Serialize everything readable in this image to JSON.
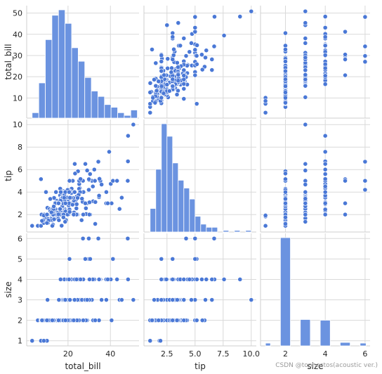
{
  "chart_data": {
    "type": "scatter",
    "layout": "pairplot",
    "variables": [
      "total_bill",
      "tip",
      "size"
    ],
    "axis_labels": {
      "total_bill": "total_bill",
      "tip": "tip",
      "size": "size"
    },
    "ranges": {
      "total_bill": [
        0.5,
        53.5
      ],
      "tip": [
        0.45,
        10.45
      ],
      "size": [
        0.75,
        6.25
      ]
    },
    "ticks": {
      "x": {
        "total_bill": [
          20,
          40
        ],
        "tip": [
          2.5,
          5.0,
          7.5,
          10.0
        ],
        "size": [
          2,
          4,
          6
        ]
      },
      "y": {
        "total_bill": [
          10,
          20,
          30,
          40,
          50
        ],
        "tip": [
          2,
          4,
          6,
          8,
          10
        ],
        "size": [
          1,
          2,
          3,
          4,
          5,
          6
        ]
      }
    },
    "grid": true,
    "colors": {
      "marker": "#4a78d6",
      "marker_edge": "#ffffff",
      "hist": "#6b93e0",
      "grid": "#d9d9d9",
      "spine": "#cfcfcf"
    },
    "histograms": {
      "total_bill": {
        "edges": [
          3.07,
          6.2,
          9.3,
          12.4,
          15.5,
          18.6,
          21.7,
          24.8,
          27.9,
          31.0,
          34.1,
          37.2,
          40.3,
          43.4,
          46.5,
          49.6,
          52.7
        ],
        "counts": [
          2,
          13,
          29,
          38,
          40,
          35,
          26,
          21,
          15,
          10,
          8,
          5,
          4,
          2,
          1,
          3
        ]
      },
      "tip": {
        "edges": [
          1.0,
          1.5,
          2.0,
          2.5,
          3.0,
          3.5,
          4.0,
          4.5,
          5.0,
          5.5,
          6.0,
          6.5,
          7.0,
          7.5,
          8.0,
          8.5,
          9.0,
          9.5,
          10.0
        ],
        "counts": [
          15,
          40,
          69,
          61,
          44,
          33,
          28,
          21,
          10,
          5,
          3,
          3,
          0,
          1,
          0,
          1,
          0,
          1
        ]
      },
      "size": {
        "edges": [
          1.0,
          1.25,
          1.75,
          2.25,
          2.75,
          3.25,
          3.75,
          4.25,
          4.75,
          5.25,
          5.75,
          6.05
        ],
        "counts": [
          4,
          0,
          156,
          0,
          38,
          0,
          37,
          0,
          5,
          0,
          4
        ]
      }
    },
    "points": [
      [
        16.99,
        1.01,
        2
      ],
      [
        10.34,
        1.66,
        3
      ],
      [
        21.01,
        3.5,
        3
      ],
      [
        23.68,
        3.31,
        2
      ],
      [
        24.59,
        3.61,
        4
      ],
      [
        25.29,
        4.71,
        4
      ],
      [
        8.77,
        2.0,
        2
      ],
      [
        26.88,
        3.12,
        4
      ],
      [
        15.04,
        1.96,
        2
      ],
      [
        14.78,
        3.23,
        2
      ],
      [
        10.27,
        1.71,
        2
      ],
      [
        35.26,
        5.0,
        4
      ],
      [
        15.42,
        1.57,
        2
      ],
      [
        18.43,
        3.0,
        4
      ],
      [
        14.83,
        3.02,
        2
      ],
      [
        21.58,
        3.92,
        2
      ],
      [
        10.33,
        1.67,
        3
      ],
      [
        16.29,
        3.71,
        3
      ],
      [
        16.97,
        3.5,
        3
      ],
      [
        20.65,
        3.35,
        3
      ],
      [
        17.92,
        4.08,
        2
      ],
      [
        20.29,
        2.75,
        2
      ],
      [
        15.77,
        2.23,
        2
      ],
      [
        39.42,
        7.58,
        4
      ],
      [
        19.82,
        3.18,
        2
      ],
      [
        17.81,
        2.34,
        4
      ],
      [
        13.37,
        2.0,
        2
      ],
      [
        12.69,
        2.0,
        2
      ],
      [
        21.7,
        4.3,
        2
      ],
      [
        19.65,
        3.0,
        2
      ],
      [
        9.55,
        1.45,
        2
      ],
      [
        18.35,
        2.5,
        4
      ],
      [
        15.06,
        3.0,
        2
      ],
      [
        20.69,
        2.45,
        4
      ],
      [
        17.78,
        3.27,
        2
      ],
      [
        24.06,
        3.6,
        3
      ],
      [
        16.31,
        2.0,
        3
      ],
      [
        16.93,
        3.07,
        3
      ],
      [
        18.69,
        2.31,
        3
      ],
      [
        31.27,
        5.0,
        3
      ],
      [
        16.04,
        2.24,
        3
      ],
      [
        17.46,
        2.54,
        2
      ],
      [
        13.94,
        3.06,
        2
      ],
      [
        9.68,
        1.32,
        2
      ],
      [
        30.4,
        5.6,
        4
      ],
      [
        18.29,
        3.0,
        2
      ],
      [
        22.23,
        5.0,
        2
      ],
      [
        32.4,
        6.0,
        4
      ],
      [
        28.55,
        2.05,
        3
      ],
      [
        18.04,
        3.0,
        2
      ],
      [
        12.54,
        2.5,
        2
      ],
      [
        10.29,
        2.6,
        2
      ],
      [
        34.81,
        5.2,
        4
      ],
      [
        9.94,
        1.56,
        2
      ],
      [
        25.56,
        4.34,
        4
      ],
      [
        19.49,
        3.51,
        2
      ],
      [
        38.01,
        3.0,
        4
      ],
      [
        26.41,
        1.5,
        2
      ],
      [
        11.24,
        1.76,
        2
      ],
      [
        48.27,
        6.73,
        4
      ],
      [
        20.29,
        3.21,
        2
      ],
      [
        13.81,
        2.0,
        2
      ],
      [
        11.02,
        1.98,
        2
      ],
      [
        18.29,
        3.76,
        4
      ],
      [
        17.59,
        2.64,
        3
      ],
      [
        20.08,
        3.15,
        3
      ],
      [
        16.45,
        2.47,
        2
      ],
      [
        3.07,
        1.0,
        1
      ],
      [
        20.23,
        2.01,
        2
      ],
      [
        15.01,
        2.09,
        2
      ],
      [
        12.02,
        1.97,
        2
      ],
      [
        17.07,
        3.0,
        3
      ],
      [
        26.86,
        3.14,
        2
      ],
      [
        25.28,
        5.0,
        2
      ],
      [
        14.73,
        2.2,
        2
      ],
      [
        10.51,
        1.25,
        2
      ],
      [
        17.92,
        3.08,
        2
      ],
      [
        27.2,
        4.0,
        4
      ],
      [
        22.76,
        3.0,
        2
      ],
      [
        17.29,
        2.71,
        2
      ],
      [
        19.44,
        3.0,
        2
      ],
      [
        16.66,
        3.4,
        2
      ],
      [
        10.07,
        1.83,
        1
      ],
      [
        32.68,
        5.0,
        2
      ],
      [
        15.98,
        2.03,
        2
      ],
      [
        34.83,
        5.17,
        4
      ],
      [
        13.03,
        2.0,
        2
      ],
      [
        18.28,
        4.0,
        2
      ],
      [
        24.71,
        5.85,
        2
      ],
      [
        21.16,
        3.0,
        2
      ],
      [
        28.97,
        3.0,
        2
      ],
      [
        22.49,
        3.5,
        2
      ],
      [
        5.75,
        1.0,
        2
      ],
      [
        16.32,
        4.3,
        2
      ],
      [
        22.75,
        3.25,
        2
      ],
      [
        40.17,
        4.73,
        4
      ],
      [
        27.28,
        4.0,
        2
      ],
      [
        12.03,
        1.5,
        2
      ],
      [
        21.01,
        3.0,
        2
      ],
      [
        12.46,
        1.5,
        2
      ],
      [
        11.35,
        2.5,
        2
      ],
      [
        15.38,
        3.0,
        2
      ],
      [
        44.3,
        2.5,
        3
      ],
      [
        22.42,
        3.48,
        2
      ],
      [
        20.92,
        4.08,
        2
      ],
      [
        15.36,
        1.64,
        2
      ],
      [
        20.49,
        4.06,
        2
      ],
      [
        25.21,
        4.29,
        2
      ],
      [
        18.24,
        3.76,
        2
      ],
      [
        14.31,
        4.0,
        2
      ],
      [
        14.0,
        3.0,
        2
      ],
      [
        7.25,
        1.0,
        1
      ],
      [
        38.07,
        4.0,
        3
      ],
      [
        23.95,
        2.55,
        2
      ],
      [
        25.71,
        4.0,
        3
      ],
      [
        17.31,
        3.5,
        2
      ],
      [
        29.93,
        5.07,
        4
      ],
      [
        10.65,
        1.5,
        2
      ],
      [
        12.43,
        1.8,
        2
      ],
      [
        24.08,
        2.92,
        4
      ],
      [
        11.69,
        2.31,
        2
      ],
      [
        13.42,
        1.68,
        2
      ],
      [
        14.26,
        2.5,
        2
      ],
      [
        15.95,
        2.0,
        2
      ],
      [
        12.48,
        2.52,
        2
      ],
      [
        29.8,
        4.2,
        6
      ],
      [
        8.52,
        1.48,
        2
      ],
      [
        14.52,
        2.0,
        2
      ],
      [
        11.38,
        2.0,
        2
      ],
      [
        22.82,
        2.18,
        3
      ],
      [
        19.08,
        1.5,
        2
      ],
      [
        20.27,
        2.83,
        2
      ],
      [
        11.17,
        1.5,
        2
      ],
      [
        12.26,
        2.0,
        2
      ],
      [
        18.26,
        3.25,
        2
      ],
      [
        8.51,
        1.25,
        2
      ],
      [
        10.33,
        2.0,
        2
      ],
      [
        14.15,
        2.0,
        2
      ],
      [
        16.0,
        2.0,
        2
      ],
      [
        13.16,
        2.75,
        2
      ],
      [
        17.47,
        3.5,
        2
      ],
      [
        34.3,
        6.7,
        6
      ],
      [
        41.19,
        5.0,
        5
      ],
      [
        27.05,
        5.0,
        6
      ],
      [
        16.43,
        2.3,
        2
      ],
      [
        8.35,
        1.5,
        2
      ],
      [
        18.64,
        1.36,
        3
      ],
      [
        11.87,
        1.63,
        2
      ],
      [
        9.78,
        1.73,
        2
      ],
      [
        7.51,
        2.0,
        2
      ],
      [
        14.07,
        2.5,
        2
      ],
      [
        13.13,
        2.0,
        2
      ],
      [
        17.26,
        2.74,
        3
      ],
      [
        24.55,
        2.0,
        4
      ],
      [
        19.77,
        2.0,
        4
      ],
      [
        29.85,
        5.14,
        5
      ],
      [
        48.17,
        5.0,
        6
      ],
      [
        25.0,
        3.75,
        4
      ],
      [
        13.39,
        2.61,
        2
      ],
      [
        16.49,
        2.0,
        4
      ],
      [
        21.5,
        3.5,
        4
      ],
      [
        12.66,
        2.5,
        2
      ],
      [
        16.21,
        2.0,
        3
      ],
      [
        13.81,
        2.0,
        2
      ],
      [
        17.51,
        3.0,
        2
      ],
      [
        24.52,
        3.48,
        3
      ],
      [
        20.76,
        2.24,
        2
      ],
      [
        31.71,
        4.5,
        4
      ],
      [
        10.59,
        1.61,
        2
      ],
      [
        10.63,
        2.0,
        2
      ],
      [
        50.81,
        10.0,
        3
      ],
      [
        15.81,
        3.16,
        2
      ],
      [
        7.25,
        5.15,
        2
      ],
      [
        31.85,
        3.18,
        2
      ],
      [
        16.82,
        4.0,
        2
      ],
      [
        32.9,
        3.11,
        2
      ],
      [
        17.89,
        2.0,
        2
      ],
      [
        14.48,
        2.0,
        2
      ],
      [
        9.6,
        4.0,
        2
      ],
      [
        34.63,
        3.55,
        2
      ],
      [
        34.65,
        3.68,
        4
      ],
      [
        23.33,
        5.65,
        2
      ],
      [
        45.35,
        3.5,
        3
      ],
      [
        23.17,
        6.5,
        4
      ],
      [
        40.55,
        3.0,
        2
      ],
      [
        20.69,
        5.0,
        5
      ],
      [
        20.9,
        3.5,
        3
      ],
      [
        30.46,
        2.0,
        5
      ],
      [
        18.15,
        3.5,
        3
      ],
      [
        23.1,
        4.0,
        3
      ],
      [
        15.69,
        1.5,
        2
      ],
      [
        19.81,
        4.19,
        2
      ],
      [
        28.44,
        2.56,
        2
      ],
      [
        15.48,
        2.02,
        2
      ],
      [
        16.58,
        4.0,
        2
      ],
      [
        7.56,
        1.44,
        2
      ],
      [
        10.34,
        2.0,
        2
      ],
      [
        43.11,
        5.0,
        4
      ],
      [
        13.0,
        2.0,
        2
      ],
      [
        13.51,
        2.0,
        2
      ],
      [
        18.71,
        4.0,
        3
      ],
      [
        12.74,
        2.01,
        2
      ],
      [
        13.0,
        2.0,
        2
      ],
      [
        16.4,
        2.5,
        2
      ],
      [
        20.53,
        4.0,
        4
      ],
      [
        16.47,
        3.23,
        3
      ],
      [
        26.59,
        3.41,
        3
      ],
      [
        38.73,
        3.0,
        4
      ],
      [
        24.27,
        2.03,
        2
      ],
      [
        12.76,
        2.23,
        2
      ],
      [
        30.06,
        2.0,
        3
      ],
      [
        25.89,
        5.16,
        4
      ],
      [
        48.33,
        9.0,
        4
      ],
      [
        13.27,
        2.5,
        2
      ],
      [
        28.17,
        6.5,
        3
      ],
      [
        12.9,
        1.1,
        2
      ],
      [
        28.15,
        3.0,
        5
      ],
      [
        11.59,
        1.5,
        2
      ],
      [
        7.74,
        1.44,
        2
      ],
      [
        30.14,
        3.09,
        4
      ],
      [
        12.16,
        2.2,
        2
      ],
      [
        13.42,
        3.48,
        2
      ],
      [
        8.58,
        1.92,
        1
      ],
      [
        15.98,
        3.0,
        3
      ],
      [
        13.42,
        1.58,
        2
      ],
      [
        16.27,
        2.5,
        2
      ],
      [
        10.09,
        2.0,
        2
      ],
      [
        20.45,
        3.0,
        4
      ],
      [
        13.28,
        2.72,
        2
      ],
      [
        22.12,
        2.88,
        2
      ],
      [
        24.01,
        2.0,
        4
      ],
      [
        15.69,
        3.0,
        3
      ],
      [
        11.61,
        3.39,
        2
      ],
      [
        10.77,
        1.47,
        2
      ],
      [
        15.53,
        3.0,
        2
      ],
      [
        10.07,
        1.25,
        2
      ],
      [
        12.6,
        1.0,
        2
      ],
      [
        32.83,
        1.17,
        2
      ],
      [
        35.83,
        4.67,
        3
      ],
      [
        29.03,
        5.92,
        3
      ],
      [
        27.18,
        2.0,
        2
      ],
      [
        22.67,
        2.0,
        2
      ],
      [
        17.82,
        1.75,
        2
      ],
      [
        18.78,
        3.0,
        2
      ]
    ]
  },
  "watermark": "CSDN @tophestos(acoustic ver.)"
}
